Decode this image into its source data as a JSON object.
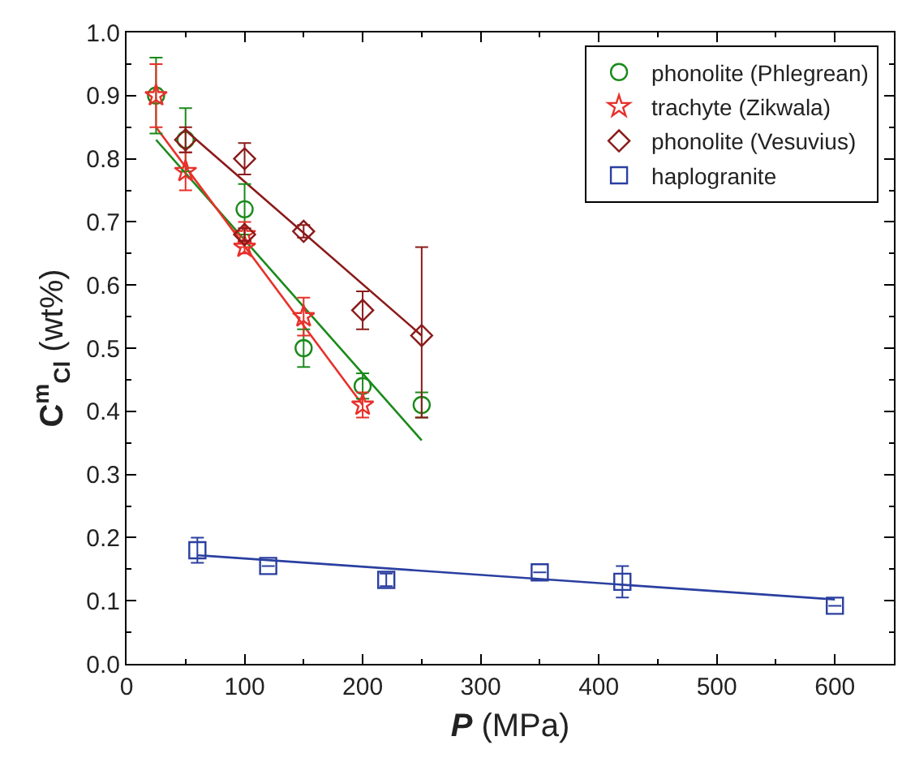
{
  "chart_data": {
    "type": "scatter",
    "xlabel": "P (MPa)",
    "ylabel": "C$^{m}$$_{Cl}$ (wt%)",
    "xlim": [
      0,
      650
    ],
    "xticks": [
      0,
      100,
      200,
      300,
      400,
      500,
      600
    ],
    "ylim": [
      0,
      1.0
    ],
    "yticks": [
      {
        "value": 0,
        "label": "0.0"
      },
      0.1,
      0.2,
      0.3,
      0.4,
      0.5,
      0.6,
      0.7,
      0.8,
      0.9,
      {
        "value": 1.0,
        "label": "1.0"
      }
    ],
    "legend": "top right",
    "series": [
      {
        "name": "phonolite (Phlegrean)",
        "marker": "circle",
        "color": "#1a8a1a",
        "x": [
          25,
          50,
          100,
          150,
          200,
          250
        ],
        "values": [
          0.9,
          0.83,
          0.72,
          0.5,
          0.44,
          0.41
        ],
        "errors": [
          0.06,
          0.05,
          0.04,
          0.03,
          0.02,
          0.02
        ]
      },
      {
        "name": "trachyte (Zikwala)",
        "marker": "star",
        "color": "#e8302a",
        "x": [
          25,
          50,
          100,
          100,
          150,
          200
        ],
        "values": [
          0.9,
          0.78,
          0.68,
          0.66,
          0.55,
          0.41
        ],
        "errors": [
          0.05,
          0.03,
          0.02,
          0.01,
          0.03,
          0.02
        ]
      },
      {
        "name": "phonolite (Vesuvius)",
        "marker": "diamond",
        "color": "#8b1a1a",
        "x": [
          50,
          100,
          100,
          150,
          200,
          250
        ],
        "values": [
          0.83,
          0.8,
          0.68,
          0.685,
          0.56,
          0.52
        ],
        "errors": [
          0.02,
          0.025,
          0.01,
          0.01,
          0.03,
          [
            0.39,
            0.66
          ]
        ]
      },
      {
        "name": "haplogranite",
        "marker": "square",
        "color": "#2a3fa0",
        "x": [
          60,
          120,
          220,
          350,
          420,
          600
        ],
        "values": [
          0.18,
          0.155,
          0.133,
          0.145,
          0.13,
          0.092
        ],
        "errors": [
          0.02,
          null,
          0.01,
          null,
          0.025,
          null
        ]
      },
      {
        "type": "line",
        "color": "#1a8a1a",
        "x": [
          25,
          250
        ],
        "values": [
          0.83,
          0.354
        ]
      },
      {
        "type": "line",
        "color": "#e8302a",
        "x": [
          25,
          200
        ],
        "values": [
          0.85,
          0.41
        ]
      },
      {
        "type": "line",
        "color": "#8b1a1a",
        "x": [
          50,
          250
        ],
        "values": [
          0.845,
          0.52
        ]
      },
      {
        "type": "line",
        "color": "#2a3fa0",
        "x": [
          60,
          600
        ],
        "values": [
          0.172,
          0.102
        ]
      }
    ]
  }
}
